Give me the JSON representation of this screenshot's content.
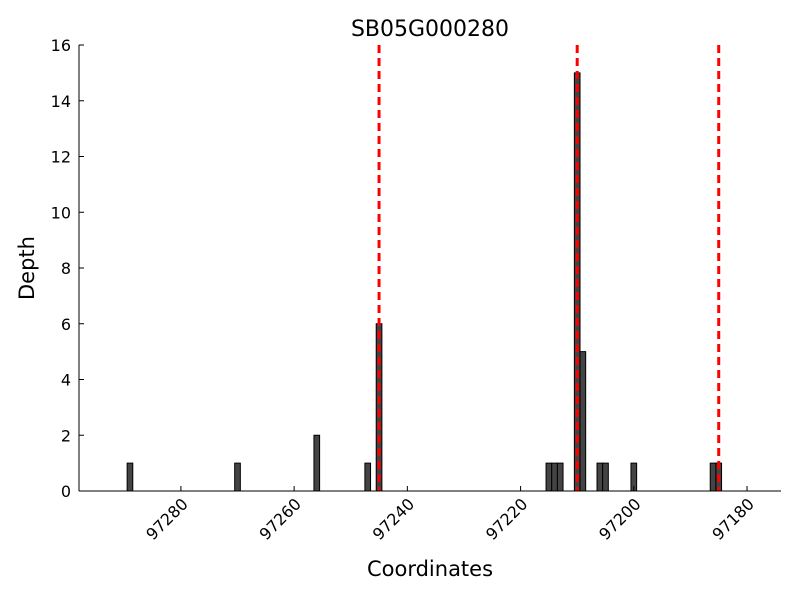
{
  "chart_data": {
    "type": "bar",
    "title": "SB05G000280",
    "xlabel": "Coordinates",
    "ylabel": "Depth",
    "x": [
      97289,
      97270,
      97256,
      97247,
      97245,
      97215,
      97214,
      97213,
      97210,
      97209,
      97206,
      97205,
      97200,
      97186,
      97185
    ],
    "values": [
      1,
      1,
      2,
      1,
      6,
      1,
      1,
      1,
      15,
      5,
      1,
      1,
      1,
      1,
      1
    ],
    "color": "#444444",
    "vlines": [
      97245,
      97210,
      97185
    ],
    "vline_color": "#ff0000",
    "xlim": [
      97298,
      97174
    ],
    "xticks": [
      97280,
      97260,
      97240,
      97220,
      97200,
      97180
    ],
    "ylim": [
      0,
      16
    ],
    "yticks": [
      0,
      2,
      4,
      6,
      8,
      10,
      12,
      14,
      16
    ]
  }
}
